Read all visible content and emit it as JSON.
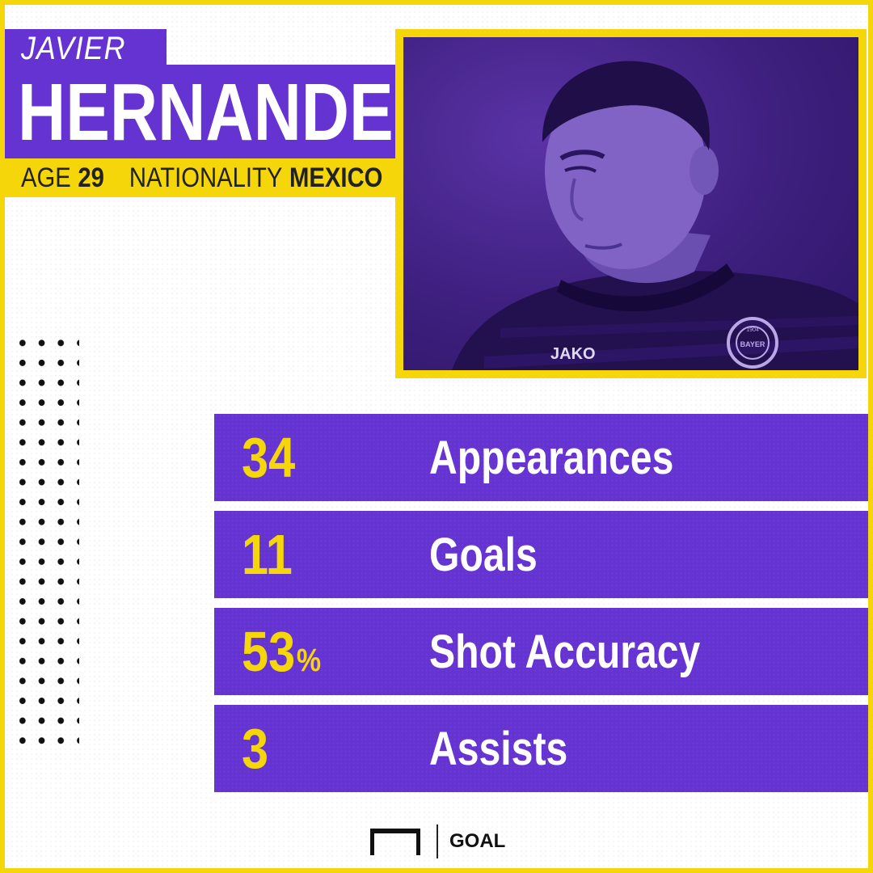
{
  "player": {
    "first_name": "JAVIER",
    "last_name": "HERNANDEZ",
    "age_label": "AGE",
    "age_value": "29",
    "nationality_label": "NATIONALITY",
    "nationality_value": "MEXICO"
  },
  "photo": {
    "kit_sponsor_text": "JAKO",
    "badge_text": "BAYER",
    "badge_year": "1904"
  },
  "stats": [
    {
      "value": "34",
      "unit": "",
      "label": "Appearances"
    },
    {
      "value": "11",
      "unit": "",
      "label": "Goals"
    },
    {
      "value": "53",
      "unit": "%",
      "label": "Shot Accuracy"
    },
    {
      "value": "3",
      "unit": "",
      "label": "Assists"
    }
  ],
  "brand": {
    "name": "GOAL"
  },
  "colors": {
    "purple": "#6533d1",
    "yellow": "#f5d60a",
    "white": "#ffffff",
    "dark": "#111111"
  }
}
